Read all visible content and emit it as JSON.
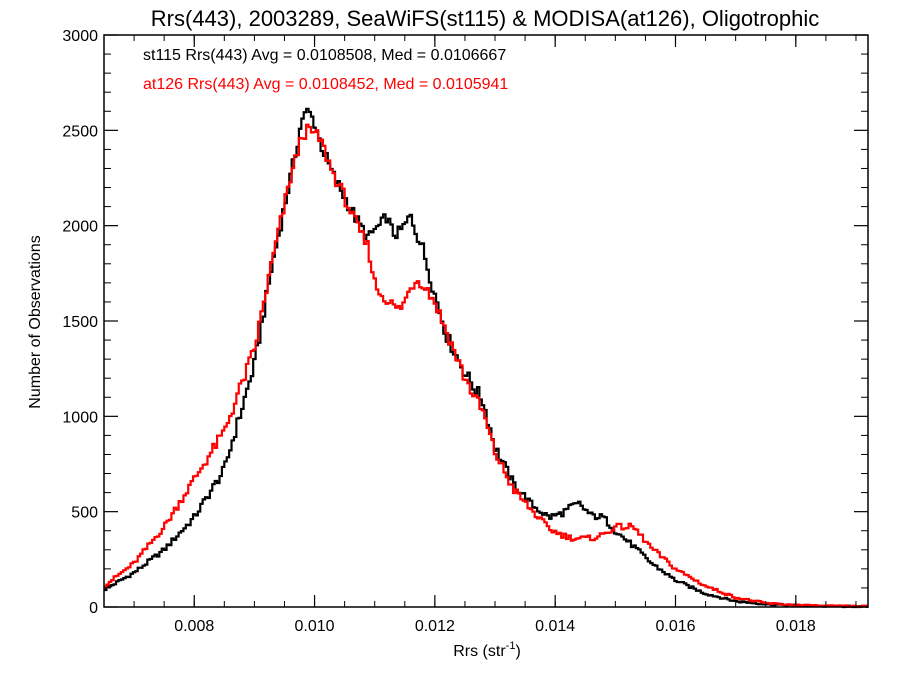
{
  "chart_data": {
    "type": "line",
    "title": "Rrs(443), 2003289, SeaWiFS(st115) & MODISA(at126), Oligotrophic",
    "xlabel_main": "Rrs (str",
    "xlabel_sup": "-1",
    "xlabel_close": ")",
    "ylabel": "Number of Observations",
    "xlim": [
      0.0065,
      0.0192
    ],
    "ylim": [
      0,
      3000
    ],
    "x_ticks": [
      0.008,
      0.01,
      0.012,
      0.014,
      0.016,
      0.018
    ],
    "x_tick_labels": [
      "0.008",
      "0.010",
      "0.012",
      "0.014",
      "0.016",
      "0.018"
    ],
    "y_ticks": [
      0,
      500,
      1000,
      1500,
      2000,
      2500,
      3000
    ],
    "y_tick_labels": [
      "0",
      "500",
      "1000",
      "1500",
      "2000",
      "2500",
      "3000"
    ],
    "grid": false,
    "legend": [
      {
        "text": "st115 Rrs(443) Avg = 0.0108508, Med = 0.0106667",
        "color": "#000000"
      },
      {
        "text": "at126 Rrs(443) Avg = 0.0108452, Med = 0.0105941",
        "color": "#ff0000"
      }
    ],
    "series": [
      {
        "color": "#000000",
        "x": [
          0.0065,
          0.007,
          0.0075,
          0.008,
          0.0085,
          0.009,
          0.0093,
          0.0096,
          0.0098,
          0.0099,
          0.01,
          0.0101,
          0.0103,
          0.0105,
          0.0107,
          0.0109,
          0.011,
          0.0111,
          0.0112,
          0.0113,
          0.0114,
          0.0115,
          0.0116,
          0.0117,
          0.0118,
          0.012,
          0.0122,
          0.0125,
          0.0128,
          0.013,
          0.0133,
          0.0136,
          0.0139,
          0.0141,
          0.0143,
          0.0144,
          0.0146,
          0.0148,
          0.015,
          0.0153,
          0.0156,
          0.016,
          0.0165,
          0.017,
          0.0175,
          0.018,
          0.0185,
          0.0192
        ],
        "y": [
          90,
          180,
          300,
          470,
          720,
          1270,
          1800,
          2250,
          2570,
          2600,
          2540,
          2430,
          2270,
          2150,
          2030,
          1930,
          1980,
          2000,
          2050,
          1960,
          1960,
          2000,
          2050,
          1960,
          1880,
          1640,
          1420,
          1230,
          1080,
          840,
          650,
          540,
          470,
          490,
          530,
          540,
          480,
          470,
          400,
          320,
          230,
          140,
          70,
          30,
          15,
          8,
          4,
          2
        ]
      },
      {
        "color": "#ff0000",
        "x": [
          0.0065,
          0.007,
          0.0075,
          0.008,
          0.0085,
          0.009,
          0.0093,
          0.0096,
          0.0098,
          0.0099,
          0.01,
          0.0101,
          0.0103,
          0.0105,
          0.0107,
          0.0109,
          0.011,
          0.0111,
          0.0112,
          0.0113,
          0.0114,
          0.0115,
          0.0116,
          0.0117,
          0.0118,
          0.012,
          0.0122,
          0.0125,
          0.0128,
          0.013,
          0.0133,
          0.0136,
          0.0139,
          0.0141,
          0.0143,
          0.0144,
          0.0146,
          0.0148,
          0.015,
          0.0153,
          0.0156,
          0.016,
          0.0165,
          0.017,
          0.0175,
          0.018,
          0.0185,
          0.0192
        ],
        "y": [
          110,
          230,
          420,
          670,
          920,
          1350,
          1820,
          2250,
          2480,
          2500,
          2480,
          2450,
          2280,
          2150,
          2000,
          1880,
          1700,
          1640,
          1620,
          1580,
          1560,
          1600,
          1680,
          1720,
          1700,
          1600,
          1440,
          1200,
          1020,
          810,
          620,
          510,
          410,
          380,
          360,
          360,
          360,
          380,
          420,
          420,
          310,
          200,
          110,
          50,
          20,
          10,
          5,
          3
        ]
      }
    ]
  }
}
